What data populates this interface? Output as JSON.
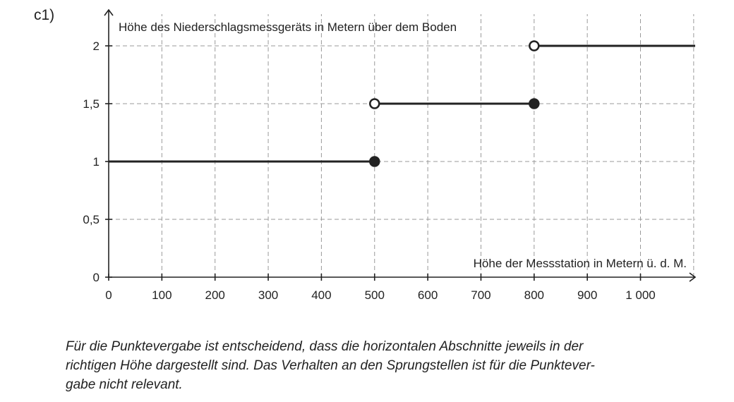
{
  "task_label": "c1)",
  "note": "Für die Punktevergabe ist entscheidend, dass die horizontalen Abschnitte jeweils in der richtigen Höhe dargestellt sind. Das Verhalten an den Sprungstellen ist für die Punktevergabe nicht relevant.",
  "note_lines": [
    "Für die Punktevergabe ist entscheidend, dass die horizontalen Abschnitte jeweils in der",
    "richtigen Höhe dargestellt sind. Das Verhalten an den Sprungstellen ist für die Punktever-",
    "gabe nicht relevant."
  ],
  "chart_data": {
    "type": "line",
    "subtype": "step-function",
    "xlabel": "Höhe der Messstation in Metern ü. d. M.",
    "ylabel": "Höhe des Niederschlagsmessgeräts in Metern über dem Boden",
    "xlim": [
      0,
      1100
    ],
    "ylim": [
      0,
      2.3
    ],
    "x_ticks": [
      0,
      100,
      200,
      300,
      400,
      500,
      600,
      700,
      800,
      900,
      1000
    ],
    "x_tick_labels": [
      "0",
      "100",
      "200",
      "300",
      "400",
      "500",
      "600",
      "700",
      "800",
      "900",
      "1 000"
    ],
    "y_ticks": [
      0,
      0.5,
      1,
      1.5,
      2
    ],
    "y_tick_labels": [
      "0",
      "0,5",
      "1",
      "1,5",
      "2"
    ],
    "grid": true,
    "segments": [
      {
        "x": [
          0,
          500
        ],
        "y": 1,
        "left": "continues",
        "right": "closed"
      },
      {
        "x": [
          500,
          800
        ],
        "y": 1.5,
        "left": "open",
        "right": "closed"
      },
      {
        "x": [
          800,
          1100
        ],
        "y": 2,
        "left": "open",
        "right": "continues"
      }
    ],
    "colors": {
      "line": "#222222",
      "grid": "#9a9a9a"
    }
  }
}
